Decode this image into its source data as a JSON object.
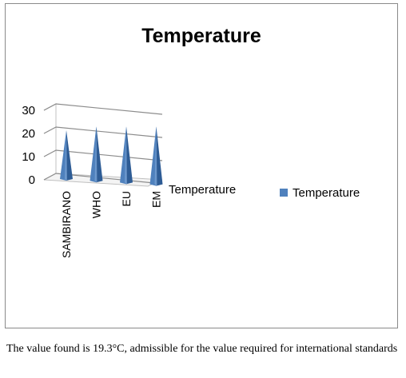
{
  "chart_data": {
    "type": "bar",
    "bar_shape": "cone",
    "title": "Temperature",
    "categories": [
      "SAMBIRANO",
      "WHO",
      "EU",
      "EM"
    ],
    "series": [
      {
        "name": "Temperature",
        "values": [
          19.3,
          21,
          21,
          21
        ]
      }
    ],
    "series_axis_label": "Temperature",
    "ylim": [
      0,
      30
    ],
    "yticks": [
      "0",
      "10",
      "20",
      "30"
    ],
    "grid": true,
    "legend": "right",
    "color": "#4f81bd"
  },
  "caption": "The value found is 19.3°C, admissible for the value required for international standards"
}
